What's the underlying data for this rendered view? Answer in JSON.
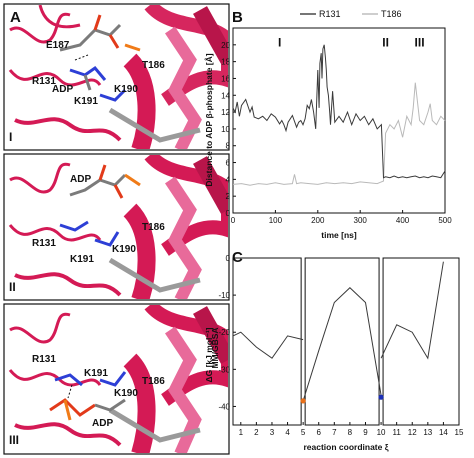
{
  "panels": {
    "A": {
      "label": "A",
      "frames": [
        {
          "roman": "I",
          "labels": [
            "E187",
            "R131",
            "ADP",
            "T186",
            "K191",
            "K190"
          ]
        },
        {
          "roman": "II",
          "labels": [
            "ADP",
            "R131",
            "T186",
            "K191",
            "K190"
          ]
        },
        {
          "roman": "III",
          "labels": [
            "R131",
            "K191",
            "T186",
            "K190",
            "ADP"
          ]
        }
      ]
    },
    "B": {
      "label": "B"
    },
    "C": {
      "label": "C"
    }
  },
  "colors": {
    "ribbon": "#d41a55",
    "ribbon_light": "#e86a9a",
    "backbone": "#9a9a9a",
    "carbon": "#7b7b7b",
    "oxygen": "#e23a1a",
    "nitrogen": "#2d3fd6",
    "phosphate": "#f07b18",
    "r131_line": "#3a3a3a",
    "t186_line": "#b9b9b9",
    "orange_dot": "#e8701a",
    "blue_dot": "#1c2fb5"
  },
  "chart_data": [
    {
      "type": "line",
      "ylabel": "Distance to ADP β-phosphate [Å]",
      "xlabel": "time [ns]",
      "xlim": [
        0,
        500
      ],
      "ylim": [
        0,
        22
      ],
      "xticks": [
        0,
        100,
        200,
        300,
        400,
        500
      ],
      "yticks": [
        0,
        2,
        4,
        6,
        8,
        10,
        12,
        14,
        16,
        18,
        20
      ],
      "legend_position": "top",
      "phase_labels": [
        {
          "text": "I",
          "x": 110,
          "y": 19.8
        },
        {
          "text": "II",
          "x": 360,
          "y": 19.8
        },
        {
          "text": "III",
          "x": 440,
          "y": 19.8
        }
      ],
      "series": [
        {
          "name": "R131",
          "color": "#3a3a3a",
          "x": [
            0,
            5,
            10,
            15,
            20,
            30,
            40,
            45,
            50,
            60,
            70,
            80,
            90,
            100,
            110,
            115,
            120,
            125,
            130,
            140,
            150,
            155,
            160,
            165,
            170,
            175,
            180,
            185,
            190,
            195,
            200,
            203,
            205,
            208,
            210,
            212,
            215,
            218,
            220,
            222,
            225,
            228,
            230,
            235,
            240,
            250,
            260,
            270,
            280,
            290,
            300,
            310,
            320,
            330,
            340,
            350,
            355,
            360,
            370,
            380,
            390,
            400,
            410,
            420,
            430,
            440,
            450,
            460,
            470,
            480,
            490,
            500
          ],
          "values": [
            12.5,
            12.0,
            13.2,
            11.5,
            12.8,
            13.5,
            12.0,
            12.6,
            11.4,
            11.2,
            11.5,
            11.0,
            11.8,
            11.4,
            10.6,
            11.0,
            10.5,
            9.8,
            10.8,
            11.6,
            10.2,
            10.8,
            11.0,
            10.5,
            11.2,
            12.8,
            12.4,
            13.5,
            12.0,
            10.0,
            17.0,
            12.5,
            17.8,
            19.0,
            16.0,
            19.5,
            20.0,
            18.5,
            17.0,
            15.0,
            14.0,
            12.0,
            10.5,
            14.5,
            10.8,
            11.5,
            10.8,
            12.0,
            10.5,
            11.8,
            11.0,
            11.5,
            10.5,
            11.2,
            10.0,
            10.5,
            4.2,
            4.3,
            4.2,
            4.4,
            4.2,
            4.3,
            4.2,
            4.3,
            4.4,
            4.2,
            4.3,
            4.2,
            4.4,
            4.3,
            4.2,
            5.0
          ]
        },
        {
          "name": "T186",
          "color": "#b9b9b9",
          "x": [
            0,
            20,
            40,
            60,
            80,
            100,
            120,
            140,
            145,
            150,
            160,
            180,
            200,
            220,
            240,
            260,
            280,
            300,
            320,
            340,
            355,
            360,
            370,
            380,
            390,
            400,
            410,
            420,
            425,
            430,
            440,
            450,
            460,
            465,
            470,
            480,
            490,
            500
          ],
          "values": [
            3.4,
            3.5,
            3.3,
            3.5,
            3.4,
            3.6,
            3.4,
            3.5,
            4.6,
            3.5,
            3.6,
            3.5,
            3.4,
            3.6,
            3.5,
            3.6,
            3.5,
            3.7,
            3.6,
            3.5,
            3.8,
            9.5,
            10.5,
            10.0,
            11.0,
            9.0,
            11.5,
            10.5,
            12.5,
            15.5,
            11.0,
            10.5,
            12.0,
            13.0,
            11.0,
            10.5,
            11.5,
            11.0
          ]
        }
      ]
    },
    {
      "type": "line",
      "ylabel": "ΔG [kJ mol⁻¹]",
      "ylabel_subscript": "MM/GBSA",
      "xlabel": "reaction coordinate ξ",
      "xlim": [
        0.5,
        15
      ],
      "ylim": [
        -45,
        0
      ],
      "xticks": [
        1,
        2,
        3,
        4,
        5,
        6,
        7,
        8,
        9,
        10,
        11,
        12,
        13,
        14,
        15
      ],
      "yticks": [
        -40,
        -30,
        -20,
        -10,
        0
      ],
      "segments": [
        {
          "x": [
            0.5,
            1,
            2,
            3,
            4,
            5
          ],
          "values": [
            -21,
            -20,
            -24,
            -27,
            -21,
            -22
          ]
        },
        {
          "x": [
            5,
            6,
            7,
            8,
            9,
            10
          ],
          "values": [
            -38.5,
            -25,
            -12,
            -8,
            -12,
            -37
          ]
        },
        {
          "x": [
            10,
            11,
            12,
            13,
            14
          ],
          "values": [
            -27,
            -18,
            -20,
            -27,
            -1
          ]
        }
      ],
      "markers": [
        {
          "x": 5,
          "value": -38.5,
          "color": "#e8701a"
        },
        {
          "x": 10,
          "value": -37.5,
          "color": "#1c2fb5"
        }
      ]
    }
  ]
}
